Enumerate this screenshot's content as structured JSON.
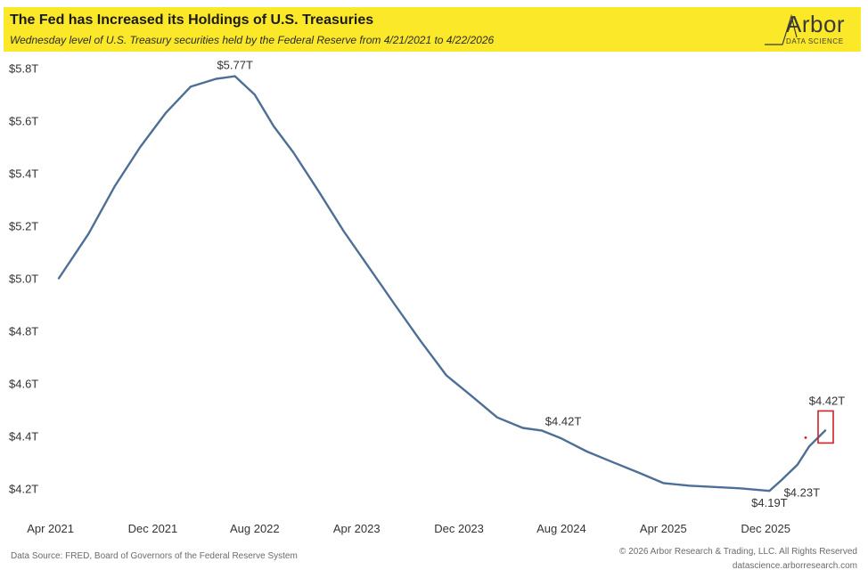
{
  "header": {
    "title": "The Fed has Increased its Holdings of U.S. Treasuries",
    "subtitle": "Wednesday level of U.S. Treasury securities held by the Federal Reserve from 4/21/2021 to 4/22/2026",
    "logo_word": "Arbor",
    "logo_sub": "DATA SCIENCE"
  },
  "footer": {
    "source": "Data Source: FRED, Board of Governors of the Federal Reserve System",
    "copyright": "© 2026 Arbor Research & Trading, LLC. All Rights Reserved",
    "website": "datascience.arborresearch.com"
  },
  "colors": {
    "banner": "#fbe829",
    "line": "#4e6f95",
    "highlight_box": "#d0202a"
  },
  "chart_data": {
    "type": "line",
    "title": "The Fed has Increased its Holdings of U.S. Treasuries",
    "xlabel": "",
    "ylabel": "",
    "ylim": [
      4.15,
      5.85
    ],
    "y_unit": "T",
    "y_ticks": [
      4.2,
      4.4,
      4.6,
      4.8,
      5.0,
      5.2,
      5.4,
      5.6,
      5.8
    ],
    "y_tick_labels": [
      "$4.2T",
      "$4.4T",
      "$4.6T",
      "$4.8T",
      "$5.0T",
      "$5.2T",
      "$5.4T",
      "$5.6T",
      "$5.8T"
    ],
    "x_ticks": [
      "2021-04",
      "2021-12",
      "2022-08",
      "2023-04",
      "2023-12",
      "2024-08",
      "2025-04",
      "2025-12"
    ],
    "x_tick_labels": [
      "Apr 2021",
      "Dec 2021",
      "Aug 2022",
      "Apr 2023",
      "Dec 2023",
      "Aug 2024",
      "Apr 2025",
      "Dec 2025"
    ],
    "grid": false,
    "series": [
      {
        "x": [
          "2021-04-21",
          "2021-07-01",
          "2021-09-01",
          "2021-11-01",
          "2022-01-01",
          "2022-03-01",
          "2022-05-01",
          "2022-06-15",
          "2022-08-01",
          "2022-09-15",
          "2022-11-01",
          "2023-01-01",
          "2023-03-01",
          "2023-05-01",
          "2023-07-01",
          "2023-09-01",
          "2023-11-01",
          "2024-01-01",
          "2024-03-01",
          "2024-05-01",
          "2024-06-15",
          "2024-08-01",
          "2024-10-01",
          "2024-12-01",
          "2025-02-01",
          "2025-04-01",
          "2025-06-01",
          "2025-08-01",
          "2025-10-01",
          "2025-12-10",
          "2026-01-07",
          "2026-02-15",
          "2026-03-15",
          "2026-04-22"
        ],
        "values": [
          5.0,
          5.17,
          5.35,
          5.5,
          5.63,
          5.73,
          5.76,
          5.77,
          5.7,
          5.58,
          5.48,
          5.33,
          5.18,
          5.04,
          4.9,
          4.76,
          4.63,
          4.55,
          4.47,
          4.43,
          4.42,
          4.39,
          4.34,
          4.3,
          4.26,
          4.22,
          4.21,
          4.205,
          4.2,
          4.19,
          4.23,
          4.29,
          4.36,
          4.42
        ]
      }
    ],
    "annotations": [
      {
        "x": "2022-06-15",
        "y": 5.77,
        "label": "$5.77T",
        "position": "above"
      },
      {
        "x": "2024-06-15",
        "y": 4.42,
        "label": "$4.42T",
        "position": "above-right"
      },
      {
        "x": "2025-12-10",
        "y": 4.19,
        "label": "$4.19T",
        "position": "below"
      },
      {
        "x": "2026-01-07",
        "y": 4.23,
        "label": "$4.23T",
        "position": "right"
      },
      {
        "x": "2026-04-22",
        "y": 4.42,
        "label": "$4.42T",
        "position": "above",
        "highlight": true
      }
    ]
  }
}
